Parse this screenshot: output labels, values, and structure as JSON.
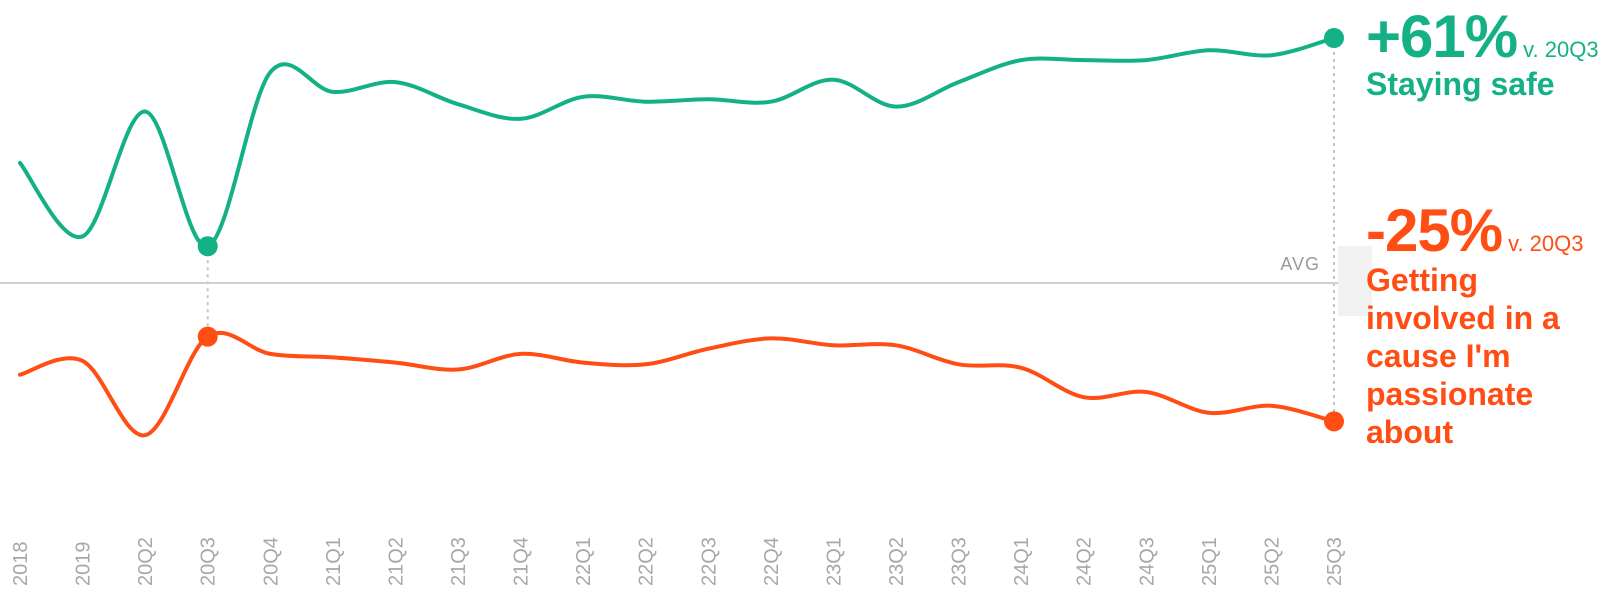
{
  "chart_data": {
    "type": "line",
    "categories": [
      "2018",
      "2019",
      "20Q2",
      "20Q3",
      "20Q4",
      "21Q1",
      "21Q2",
      "21Q3",
      "21Q4",
      "22Q1",
      "22Q2",
      "22Q3",
      "22Q4",
      "23Q1",
      "23Q2",
      "23Q3",
      "24Q1",
      "24Q2",
      "24Q3",
      "25Q1",
      "25Q2",
      "25Q3"
    ],
    "reference_line": {
      "label": "AVG",
      "value": 0
    },
    "ylim": [
      -100,
      100
    ],
    "series": [
      {
        "name": "Staying safe",
        "color": "#13b185",
        "values": [
          49,
          19,
          70,
          15,
          86,
          78,
          82,
          73,
          67,
          76,
          74,
          75,
          74,
          83,
          72,
          82,
          91,
          91,
          91,
          95,
          93,
          100
        ],
        "highlight_points": [
          3,
          21
        ]
      },
      {
        "name": "Getting involved in a cause I'm passionate about",
        "color": "#ff4d14",
        "values": [
          -53,
          -45,
          -88,
          -31,
          -41,
          -43,
          -46,
          -50,
          -41,
          -46,
          -47,
          -38,
          -32,
          -36,
          -36,
          -47,
          -49,
          -66,
          -63,
          -75,
          -71,
          -80
        ],
        "highlight_points": [
          3,
          21
        ]
      }
    ],
    "annotations": [
      {
        "series": 0,
        "change": "+61%",
        "reference": "v. 20Q3",
        "label": "Staying safe"
      },
      {
        "series": 1,
        "change": "-25%",
        "reference": "v. 20Q3",
        "label": "Getting involved in a cause I'm passionate about"
      }
    ]
  }
}
